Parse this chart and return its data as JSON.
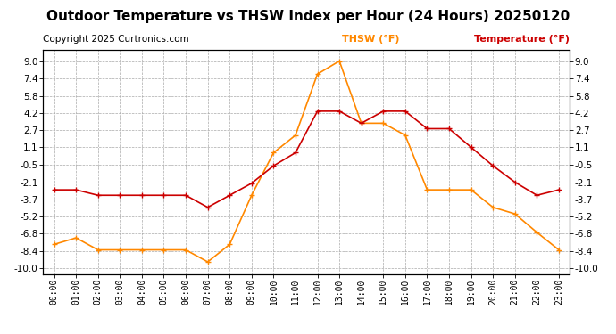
{
  "title": "Outdoor Temperature vs THSW Index per Hour (24 Hours) 20250120",
  "copyright": "Copyright 2025 Curtronics.com",
  "legend_thsw": "THSW (°F)",
  "legend_temp": "Temperature (°F)",
  "hours": [
    "00:00",
    "01:00",
    "02:00",
    "03:00",
    "04:00",
    "05:00",
    "06:00",
    "07:00",
    "08:00",
    "09:00",
    "10:00",
    "11:00",
    "12:00",
    "13:00",
    "14:00",
    "15:00",
    "16:00",
    "17:00",
    "18:00",
    "19:00",
    "20:00",
    "21:00",
    "22:00",
    "23:00"
  ],
  "temperature": [
    -2.8,
    -2.8,
    -3.3,
    -3.3,
    -3.3,
    -3.3,
    -3.3,
    -4.4,
    -3.3,
    -2.2,
    -0.6,
    0.6,
    4.4,
    4.4,
    3.3,
    4.4,
    4.4,
    2.8,
    2.8,
    1.1,
    -0.6,
    -2.1,
    -3.3,
    -2.8
  ],
  "thsw": [
    -7.8,
    -7.2,
    -8.3,
    -8.3,
    -8.3,
    -8.3,
    -8.3,
    -9.4,
    -7.8,
    -3.3,
    0.6,
    2.2,
    7.8,
    9.0,
    3.3,
    3.3,
    2.2,
    -2.8,
    -2.8,
    -2.8,
    -4.4,
    -5.0,
    -6.7,
    -8.3
  ],
  "ylim": [
    -10.5,
    10.0
  ],
  "yticks": [
    -10.0,
    -8.4,
    -6.8,
    -5.2,
    -3.7,
    -2.1,
    -0.5,
    1.1,
    2.7,
    4.2,
    5.8,
    7.4,
    9.0
  ],
  "temp_color": "#cc0000",
  "thsw_color": "#ff8800",
  "title_color": "#000000",
  "title_fontsize": 11,
  "copyright_fontsize": 7.5,
  "legend_fontsize": 8,
  "legend_thsw_color": "#ff8800",
  "legend_temp_color": "#cc0000",
  "background_color": "#ffffff",
  "grid_color": "#aaaaaa"
}
